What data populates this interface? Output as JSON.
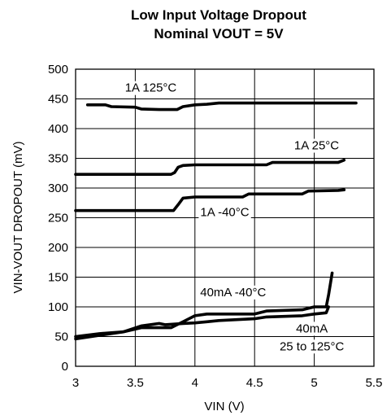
{
  "chart_data": {
    "type": "line",
    "title": [
      "Low Input Voltage Dropout",
      "Nominal VOUT = 5V"
    ],
    "xlabel": "VIN (V)",
    "ylabel": "VIN-VOUT DROPOUT (mV)",
    "xlim": [
      3,
      5.5
    ],
    "ylim": [
      0,
      500
    ],
    "xticks": [
      "3",
      "3.5",
      "4",
      "4.5",
      "5",
      "5.5"
    ],
    "yticks": [
      "0",
      "50",
      "100",
      "150",
      "200",
      "250",
      "300",
      "350",
      "400",
      "450",
      "500"
    ],
    "grid": true,
    "series": [
      {
        "name": "1A 125°C",
        "x": [
          3.1,
          3.25,
          3.3,
          3.5,
          3.55,
          3.7,
          3.85,
          3.9,
          4.0,
          4.1,
          4.2,
          5.0,
          5.35
        ],
        "y": [
          440,
          440,
          437,
          436,
          433,
          432,
          432,
          437,
          440,
          441,
          443,
          443,
          443
        ]
      },
      {
        "name": "1A 25°C",
        "x": [
          3.0,
          3.8,
          3.83,
          3.86,
          3.9,
          4.0,
          4.6,
          4.65,
          5.2,
          5.25
        ],
        "y": [
          323,
          323,
          326,
          335,
          338,
          339,
          339,
          343,
          343,
          347
        ]
      },
      {
        "name": "1A -40°C",
        "x": [
          3.0,
          3.82,
          3.86,
          3.9,
          4.0,
          4.4,
          4.45,
          4.9,
          4.95,
          5.2,
          5.25
        ],
        "y": [
          262,
          262,
          272,
          283,
          285,
          285,
          290,
          290,
          295,
          296,
          297
        ]
      },
      {
        "name": "40mA -40°C",
        "x": [
          3.0,
          3.2,
          3.4,
          3.55,
          3.8,
          3.9,
          4.0,
          4.1,
          4.5,
          4.6,
          4.9,
          5.0,
          5.1,
          5.12,
          5.15
        ],
        "y": [
          50,
          55,
          58,
          65,
          65,
          75,
          85,
          88,
          88,
          93,
          95,
          100,
          100,
          120,
          157
        ]
      },
      {
        "name": "40mA 25 to 125°C",
        "x": [
          3.0,
          3.2,
          3.4,
          3.55,
          3.7,
          3.75,
          3.9,
          4.0,
          4.1,
          4.2,
          4.5,
          4.6,
          4.9,
          5.0,
          5.1,
          5.12
        ],
        "y": [
          46,
          52,
          58,
          68,
          72,
          70,
          72,
          73,
          75,
          77,
          80,
          83,
          85,
          88,
          90,
          100
        ]
      }
    ],
    "annotations": [
      {
        "text": "1A 125°C",
        "x": 3.63,
        "y": 462
      },
      {
        "text": "1A 25°C",
        "x": 5.02,
        "y": 365
      },
      {
        "text": "1A -40°C",
        "x": 4.25,
        "y": 253
      },
      {
        "text": "40mA -40°C",
        "x": 4.32,
        "y": 118
      },
      {
        "text": "40mA",
        "x": 4.98,
        "y": 57
      },
      {
        "text": "25 to 125°C",
        "x": 4.98,
        "y": 27
      }
    ]
  }
}
